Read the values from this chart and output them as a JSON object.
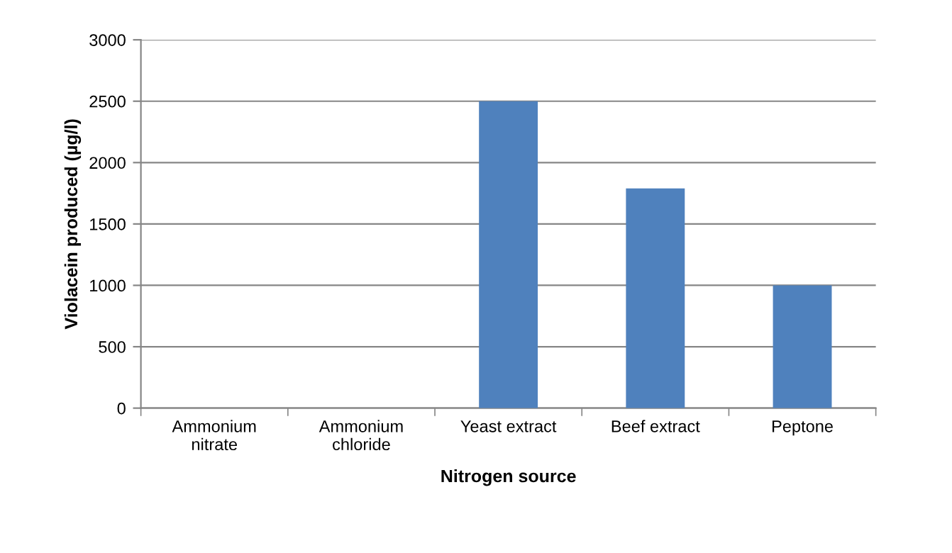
{
  "chart_data": {
    "type": "bar",
    "xlabel": "Nitrogen source",
    "ylabel": "Violacein produced (µg/l)",
    "categories": [
      "Ammonium nitrate",
      "Ammonium chloride",
      "Yeast extract",
      "Beef extract",
      "Peptone"
    ],
    "values": [
      0,
      0,
      2500,
      1790,
      1000
    ],
    "color": "#4f81bd",
    "ylim": [
      0,
      3000
    ],
    "yticks": [
      0,
      500,
      1000,
      1500,
      2000,
      2500,
      3000
    ],
    "grid": "y"
  }
}
